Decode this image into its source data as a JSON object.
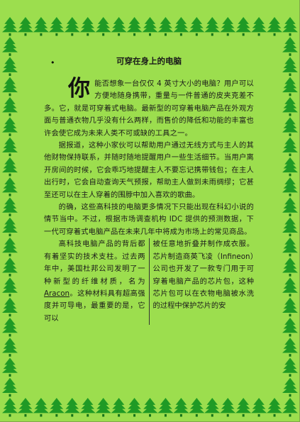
{
  "document": {
    "title": "可穿在身上的电脑",
    "bullet": "•",
    "para1_dropcap": "你",
    "para1_rest": "能否想象一台仅仅 4 英寸大小的电脑？用户可以方便地随身携带，重量与一件普通的皮夹克差不多。它，就是可穿着式电脑。最新型的可穿着电脑产品在外观方面与普通衣物几乎没有什么两样，而售价的降低和功能的丰富也许会使它成为未来人类不可或缺的工具之一。",
    "para2": "据报道，这种小家伙可以帮助用户通过无线方式与主人的其他财物保持联系，并随时随地提醒用户一些生活细节。当用户离开房间的时候，它会乖巧地提醒主人不要忘记携带钱包；在主人出行时，它会自动查询天气预报，帮助主人做到未雨绸缪；它甚至还可以在主人穿着的围脖中加入喜欢的歌曲。",
    "para3": "的确，这些高科技的电脑更多情况下只能出现在科幻小说的情节当中。不过，根据市场调查机构 IDC 提供的预测数据，下一代可穿着式电脑产品在未来几年中将成为市场上的常见商品。",
    "col_left_a": "高科技电脑产品的背后都有着坚实的技术支柱。过去两年中，美国杜邦公司发明了一种新型的纤维材质，名为",
    "col_left_link": "Aracon",
    "col_left_b": "。这种材料具有超高强度并可导电，最重要的是，它可以",
    "col_right": "被任意地折叠并制作成衣服。芯片制造商英飞凌（Infineon）公司也开发了一款专门用于可穿着电脑产品的芯片包，这种芯片包可以在衣物电脑被水洗的过程中保护芯片的安"
  },
  "colors": {
    "page_background": "#9cde4e",
    "tree_color": "#1f9a25",
    "trunk_color": "#14731a"
  },
  "icons": {
    "border_tree": "christmas-tree-icon"
  }
}
